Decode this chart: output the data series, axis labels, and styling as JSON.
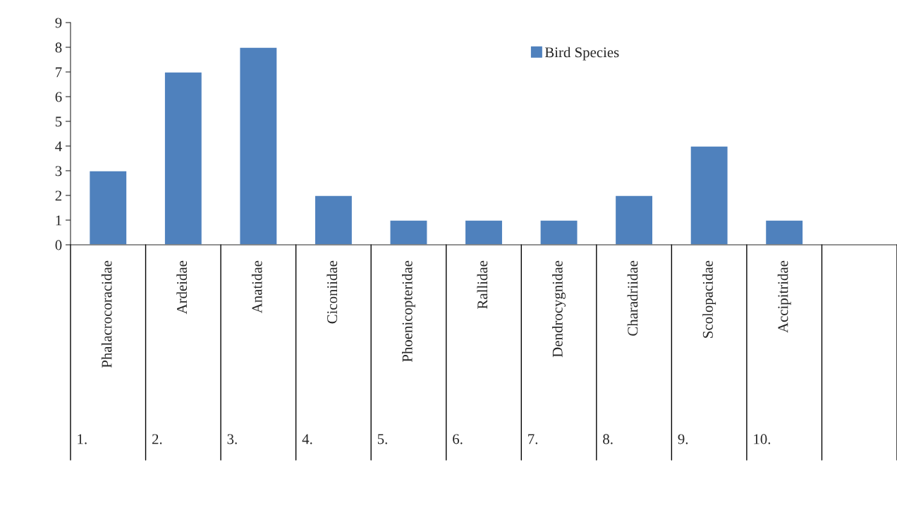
{
  "chart_data": {
    "type": "bar",
    "categories": [
      "Phalacrocoracidae",
      "Ardeidae",
      "Anatidae",
      "Ciconiidae",
      "Phoenicopteridae",
      "Rallidae",
      "Dendrocygnidae",
      "Charadriidae",
      "Scolopacidae",
      "Accipitridae",
      null
    ],
    "series": [
      {
        "name": "Bird Species",
        "color": "#4f81bd",
        "values": [
          3,
          7,
          8,
          2,
          1,
          1,
          1,
          2,
          4,
          1,
          null
        ]
      }
    ],
    "annotations": [
      "1.",
      "2.",
      "3.",
      "4.",
      "5.",
      "6.",
      "7.",
      "8.",
      "9.",
      "10."
    ],
    "ylim": [
      0,
      9
    ],
    "yticks": [
      0,
      1,
      2,
      3,
      4,
      5,
      6,
      7,
      8,
      9
    ],
    "grid": false,
    "legend": "top right"
  }
}
